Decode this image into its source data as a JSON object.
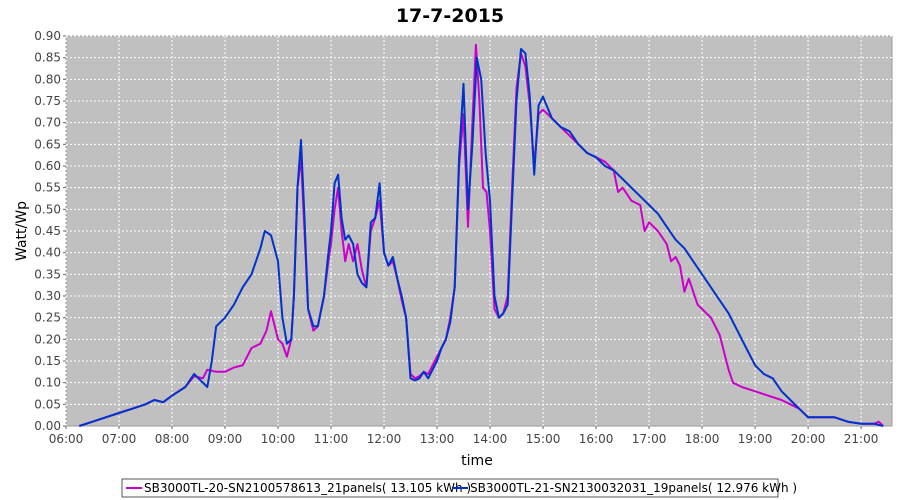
{
  "chart_data": {
    "type": "line",
    "title": "17-7-2015",
    "xlabel": "time",
    "ylabel": "Watt/Wp",
    "xlim": [
      "06:00",
      "21:35"
    ],
    "ylim": [
      0,
      0.9
    ],
    "x_ticks": [
      "06:00",
      "07:00",
      "08:00",
      "09:00",
      "10:00",
      "11:00",
      "12:00",
      "13:00",
      "14:00",
      "15:00",
      "16:00",
      "17:00",
      "18:00",
      "19:00",
      "20:00",
      "21:00"
    ],
    "y_ticks": [
      "0.00",
      "0.05",
      "0.10",
      "0.15",
      "0.20",
      "0.25",
      "0.30",
      "0.35",
      "0.40",
      "0.45",
      "0.50",
      "0.55",
      "0.60",
      "0.65",
      "0.70",
      "0.75",
      "0.80",
      "0.85",
      "0.90"
    ],
    "grid": true,
    "legend_position": "bottom",
    "background_color": "#c0c0c0",
    "series": [
      {
        "name": "SB3000TL-20-SN2100578613_21panels( 13.105 kWh )",
        "color": "#cc00cc",
        "points": [
          [
            "06:15",
            0.0
          ],
          [
            "06:30",
            0.01
          ],
          [
            "06:45",
            0.02
          ],
          [
            "07:00",
            0.03
          ],
          [
            "07:15",
            0.04
          ],
          [
            "07:30",
            0.05
          ],
          [
            "07:40",
            0.06
          ],
          [
            "07:50",
            0.055
          ],
          [
            "08:00",
            0.07
          ],
          [
            "08:15",
            0.09
          ],
          [
            "08:25",
            0.115
          ],
          [
            "08:35",
            0.11
          ],
          [
            "08:40",
            0.13
          ],
          [
            "08:50",
            0.125
          ],
          [
            "09:00",
            0.125
          ],
          [
            "09:10",
            0.135
          ],
          [
            "09:20",
            0.14
          ],
          [
            "09:30",
            0.18
          ],
          [
            "09:40",
            0.19
          ],
          [
            "09:47",
            0.22
          ],
          [
            "09:52",
            0.265
          ],
          [
            "10:00",
            0.2
          ],
          [
            "10:05",
            0.19
          ],
          [
            "10:10",
            0.16
          ],
          [
            "10:15",
            0.2
          ],
          [
            "10:18",
            0.3
          ],
          [
            "10:22",
            0.55
          ],
          [
            "10:26",
            0.62
          ],
          [
            "10:30",
            0.45
          ],
          [
            "10:34",
            0.27
          ],
          [
            "10:40",
            0.22
          ],
          [
            "10:45",
            0.23
          ],
          [
            "10:52",
            0.3
          ],
          [
            "10:57",
            0.38
          ],
          [
            "11:00",
            0.42
          ],
          [
            "11:04",
            0.5
          ],
          [
            "11:08",
            0.55
          ],
          [
            "11:12",
            0.45
          ],
          [
            "11:16",
            0.38
          ],
          [
            "11:20",
            0.42
          ],
          [
            "11:25",
            0.38
          ],
          [
            "11:30",
            0.42
          ],
          [
            "11:35",
            0.36
          ],
          [
            "11:40",
            0.32
          ],
          [
            "11:45",
            0.45
          ],
          [
            "11:50",
            0.48
          ],
          [
            "11:55",
            0.52
          ],
          [
            "12:00",
            0.4
          ],
          [
            "12:05",
            0.37
          ],
          [
            "12:10",
            0.38
          ],
          [
            "12:15",
            0.34
          ],
          [
            "12:20",
            0.29
          ],
          [
            "12:25",
            0.25
          ],
          [
            "12:30",
            0.12
          ],
          [
            "12:35",
            0.11
          ],
          [
            "12:40",
            0.115
          ],
          [
            "12:45",
            0.125
          ],
          [
            "12:50",
            0.12
          ],
          [
            "12:55",
            0.14
          ],
          [
            "13:00",
            0.16
          ],
          [
            "13:05",
            0.18
          ],
          [
            "13:10",
            0.2
          ],
          [
            "13:15",
            0.25
          ],
          [
            "13:20",
            0.32
          ],
          [
            "13:25",
            0.6
          ],
          [
            "13:30",
            0.72
          ],
          [
            "13:35",
            0.46
          ],
          [
            "13:40",
            0.7
          ],
          [
            "13:44",
            0.88
          ],
          [
            "13:48",
            0.75
          ],
          [
            "13:52",
            0.55
          ],
          [
            "13:56",
            0.54
          ],
          [
            "14:00",
            0.45
          ],
          [
            "14:05",
            0.27
          ],
          [
            "14:10",
            0.25
          ],
          [
            "14:15",
            0.26
          ],
          [
            "14:20",
            0.3
          ],
          [
            "14:25",
            0.55
          ],
          [
            "14:30",
            0.78
          ],
          [
            "14:35",
            0.86
          ],
          [
            "14:40",
            0.83
          ],
          [
            "14:45",
            0.74
          ],
          [
            "14:50",
            0.6
          ],
          [
            "14:55",
            0.72
          ],
          [
            "15:00",
            0.73
          ],
          [
            "15:10",
            0.71
          ],
          [
            "15:20",
            0.69
          ],
          [
            "15:30",
            0.67
          ],
          [
            "15:40",
            0.65
          ],
          [
            "15:50",
            0.63
          ],
          [
            "16:00",
            0.62
          ],
          [
            "16:10",
            0.61
          ],
          [
            "16:15",
            0.6
          ],
          [
            "16:20",
            0.59
          ],
          [
            "16:25",
            0.54
          ],
          [
            "16:30",
            0.55
          ],
          [
            "16:40",
            0.52
          ],
          [
            "16:50",
            0.51
          ],
          [
            "16:55",
            0.45
          ],
          [
            "17:00",
            0.47
          ],
          [
            "17:10",
            0.45
          ],
          [
            "17:20",
            0.42
          ],
          [
            "17:25",
            0.38
          ],
          [
            "17:30",
            0.39
          ],
          [
            "17:35",
            0.37
          ],
          [
            "17:40",
            0.31
          ],
          [
            "17:45",
            0.34
          ],
          [
            "17:55",
            0.28
          ],
          [
            "18:00",
            0.27
          ],
          [
            "18:10",
            0.25
          ],
          [
            "18:20",
            0.21
          ],
          [
            "18:30",
            0.13
          ],
          [
            "18:35",
            0.1
          ],
          [
            "18:45",
            0.09
          ],
          [
            "19:00",
            0.08
          ],
          [
            "19:15",
            0.07
          ],
          [
            "19:30",
            0.06
          ],
          [
            "19:40",
            0.05
          ],
          [
            "19:50",
            0.04
          ],
          [
            "20:00",
            0.02
          ],
          [
            "20:15",
            0.02
          ],
          [
            "20:30",
            0.02
          ],
          [
            "20:45",
            0.01
          ],
          [
            "21:00",
            0.005
          ],
          [
            "21:15",
            0.005
          ],
          [
            "21:20",
            0.01
          ],
          [
            "21:25",
            0.0
          ]
        ]
      },
      {
        "name": "SB3000TL-21-SN2130032031_19panels( 12.976 kWh )",
        "color": "#0033cc",
        "points": [
          [
            "06:15",
            0.0
          ],
          [
            "06:30",
            0.01
          ],
          [
            "06:45",
            0.02
          ],
          [
            "07:00",
            0.03
          ],
          [
            "07:15",
            0.04
          ],
          [
            "07:30",
            0.05
          ],
          [
            "07:40",
            0.06
          ],
          [
            "07:50",
            0.055
          ],
          [
            "08:00",
            0.07
          ],
          [
            "08:15",
            0.09
          ],
          [
            "08:25",
            0.12
          ],
          [
            "08:35",
            0.1
          ],
          [
            "08:40",
            0.09
          ],
          [
            "08:45",
            0.15
          ],
          [
            "08:50",
            0.23
          ],
          [
            "09:00",
            0.25
          ],
          [
            "09:10",
            0.28
          ],
          [
            "09:20",
            0.32
          ],
          [
            "09:30",
            0.35
          ],
          [
            "09:40",
            0.41
          ],
          [
            "09:45",
            0.45
          ],
          [
            "09:52",
            0.44
          ],
          [
            "10:00",
            0.38
          ],
          [
            "10:05",
            0.25
          ],
          [
            "10:10",
            0.19
          ],
          [
            "10:15",
            0.2
          ],
          [
            "10:18",
            0.3
          ],
          [
            "10:22",
            0.55
          ],
          [
            "10:26",
            0.66
          ],
          [
            "10:30",
            0.48
          ],
          [
            "10:34",
            0.27
          ],
          [
            "10:40",
            0.23
          ],
          [
            "10:45",
            0.23
          ],
          [
            "10:52",
            0.3
          ],
          [
            "10:57",
            0.4
          ],
          [
            "11:00",
            0.45
          ],
          [
            "11:04",
            0.56
          ],
          [
            "11:08",
            0.58
          ],
          [
            "11:12",
            0.48
          ],
          [
            "11:16",
            0.43
          ],
          [
            "11:20",
            0.44
          ],
          [
            "11:25",
            0.42
          ],
          [
            "11:30",
            0.35
          ],
          [
            "11:35",
            0.33
          ],
          [
            "11:40",
            0.32
          ],
          [
            "11:45",
            0.47
          ],
          [
            "11:50",
            0.48
          ],
          [
            "11:55",
            0.56
          ],
          [
            "12:00",
            0.4
          ],
          [
            "12:05",
            0.37
          ],
          [
            "12:10",
            0.39
          ],
          [
            "12:15",
            0.34
          ],
          [
            "12:20",
            0.3
          ],
          [
            "12:25",
            0.25
          ],
          [
            "12:30",
            0.11
          ],
          [
            "12:35",
            0.105
          ],
          [
            "12:40",
            0.11
          ],
          [
            "12:45",
            0.125
          ],
          [
            "12:50",
            0.11
          ],
          [
            "12:55",
            0.13
          ],
          [
            "13:00",
            0.15
          ],
          [
            "13:05",
            0.18
          ],
          [
            "13:10",
            0.2
          ],
          [
            "13:15",
            0.24
          ],
          [
            "13:20",
            0.32
          ],
          [
            "13:25",
            0.62
          ],
          [
            "13:30",
            0.79
          ],
          [
            "13:35",
            0.5
          ],
          [
            "13:40",
            0.65
          ],
          [
            "13:45",
            0.85
          ],
          [
            "13:50",
            0.8
          ],
          [
            "13:55",
            0.63
          ],
          [
            "14:00",
            0.52
          ],
          [
            "14:05",
            0.3
          ],
          [
            "14:10",
            0.25
          ],
          [
            "14:15",
            0.26
          ],
          [
            "14:20",
            0.28
          ],
          [
            "14:25",
            0.52
          ],
          [
            "14:30",
            0.75
          ],
          [
            "14:35",
            0.87
          ],
          [
            "14:40",
            0.86
          ],
          [
            "14:45",
            0.76
          ],
          [
            "14:50",
            0.58
          ],
          [
            "14:55",
            0.74
          ],
          [
            "15:00",
            0.76
          ],
          [
            "15:10",
            0.71
          ],
          [
            "15:20",
            0.69
          ],
          [
            "15:30",
            0.68
          ],
          [
            "15:40",
            0.65
          ],
          [
            "15:50",
            0.63
          ],
          [
            "16:00",
            0.62
          ],
          [
            "16:10",
            0.6
          ],
          [
            "16:20",
            0.59
          ],
          [
            "16:30",
            0.57
          ],
          [
            "16:40",
            0.55
          ],
          [
            "16:50",
            0.53
          ],
          [
            "17:00",
            0.51
          ],
          [
            "17:10",
            0.49
          ],
          [
            "17:20",
            0.46
          ],
          [
            "17:30",
            0.43
          ],
          [
            "17:40",
            0.41
          ],
          [
            "17:50",
            0.38
          ],
          [
            "18:00",
            0.35
          ],
          [
            "18:10",
            0.32
          ],
          [
            "18:20",
            0.29
          ],
          [
            "18:30",
            0.26
          ],
          [
            "18:40",
            0.22
          ],
          [
            "18:50",
            0.18
          ],
          [
            "19:00",
            0.14
          ],
          [
            "19:10",
            0.12
          ],
          [
            "19:20",
            0.11
          ],
          [
            "19:30",
            0.08
          ],
          [
            "19:40",
            0.06
          ],
          [
            "19:50",
            0.04
          ],
          [
            "20:00",
            0.02
          ],
          [
            "20:15",
            0.02
          ],
          [
            "20:30",
            0.02
          ],
          [
            "20:45",
            0.01
          ],
          [
            "21:00",
            0.005
          ],
          [
            "21:15",
            0.005
          ],
          [
            "21:25",
            0.0
          ]
        ]
      }
    ]
  }
}
